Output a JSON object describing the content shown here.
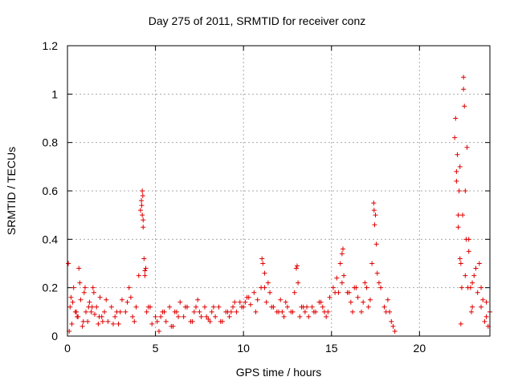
{
  "title": "Day 275 of 2011, SRMTID for receiver conz",
  "chart_data": {
    "type": "scatter",
    "title": "Day 275 of 2011, SRMTID for receiver conz",
    "xlabel": "GPS time / hours",
    "ylabel": "SRMTID / TECUs",
    "xlim": [
      0,
      24
    ],
    "ylim": [
      0,
      1.2
    ],
    "xticks": [
      "0",
      "5",
      "10",
      "15",
      "20"
    ],
    "yticks": [
      "0",
      "0.2",
      "0.4",
      "0.6",
      "0.8",
      "1",
      "1.2"
    ],
    "grid": true,
    "marker": "+",
    "color": "#e00000",
    "series": [
      {
        "x": [
          0.05,
          0.15,
          0.25,
          0.35,
          0.45,
          0.55,
          0.65,
          0.75,
          0.85,
          0.95,
          1.05,
          1.15,
          1.25,
          1.35,
          1.45,
          1.55,
          1.65,
          1.75,
          1.85,
          1.95,
          2.1,
          2.3,
          2.5,
          2.7,
          2.9,
          3.1,
          3.3,
          3.5,
          3.7,
          3.9,
          4.05,
          4.15,
          4.2,
          4.25,
          4.3,
          4.35,
          4.4,
          4.5,
          4.6,
          4.8,
          5.0,
          5.2,
          5.4,
          5.6,
          5.8,
          6.0,
          6.2,
          6.4,
          6.6,
          6.8,
          7.0,
          7.2,
          7.4,
          7.6,
          7.8,
          8.0,
          8.2,
          8.4,
          8.6,
          8.8,
          9.0,
          9.2,
          9.4,
          9.6,
          9.8,
          10.0,
          10.2,
          10.4,
          10.6,
          10.8,
          11.0,
          11.1,
          11.2,
          11.3,
          11.5,
          11.7,
          11.9,
          12.1,
          12.3,
          12.5,
          12.7,
          12.9,
          13.0,
          13.1,
          13.3,
          13.5,
          13.7,
          13.9,
          14.1,
          14.3,
          14.5,
          14.7,
          14.9,
          15.1,
          15.3,
          15.5,
          15.6,
          15.7,
          15.9,
          16.1,
          16.3,
          16.5,
          16.7,
          16.9,
          17.1,
          17.3,
          17.4,
          17.5,
          17.6,
          17.8,
          18.0,
          18.2,
          18.4,
          18.6,
          22.0,
          22.1,
          22.2,
          22.3,
          22.4,
          22.5,
          22.6,
          22.7,
          22.8,
          22.9,
          23.0,
          23.2,
          23.4,
          23.6,
          23.8,
          24.0,
          0.1,
          0.3,
          0.5,
          0.7,
          0.9,
          1.2,
          1.5,
          1.8,
          2.2,
          2.6,
          3.0,
          3.4,
          3.8,
          4.25,
          4.3,
          4.45,
          4.7,
          5.1,
          5.5,
          5.9,
          6.3,
          6.7,
          7.1,
          7.5,
          7.9,
          8.3,
          8.7,
          9.1,
          9.5,
          9.9,
          10.3,
          10.7,
          11.2,
          11.6,
          12.0,
          12.4,
          12.8,
          13.2,
          13.6,
          14.0,
          14.4,
          14.8,
          15.2,
          15.6,
          16.0,
          16.4,
          16.8,
          17.2,
          17.45,
          17.7,
          18.1,
          18.5,
          22.05,
          22.15,
          22.25,
          22.35,
          22.45,
          22.55,
          22.65,
          22.75,
          22.95,
          23.1,
          23.3,
          23.5,
          23.7,
          23.9,
          0.2,
          0.6,
          1.0,
          1.4,
          2.0,
          2.8,
          3.6,
          4.22,
          4.28,
          4.4,
          5.3,
          6.1,
          7.3,
          8.1,
          9.3,
          10.1,
          11.05,
          11.4,
          12.2,
          13.05,
          13.4,
          14.6,
          15.4,
          15.65,
          16.2,
          17.0,
          17.42,
          17.55,
          18.3,
          22.1,
          22.2,
          22.3,
          22.35,
          22.5,
          22.6,
          22.8,
          23.0,
          23.5,
          23.8
        ],
        "y": [
          0.3,
          0.12,
          0.05,
          0.2,
          0.1,
          0.08,
          0.28,
          0.15,
          0.04,
          0.18,
          0.1,
          0.06,
          0.14,
          0.1,
          0.2,
          0.09,
          0.12,
          0.05,
          0.16,
          0.08,
          0.1,
          0.06,
          0.12,
          0.08,
          0.05,
          0.15,
          0.1,
          0.2,
          0.08,
          0.12,
          0.25,
          0.52,
          0.56,
          0.6,
          0.48,
          0.32,
          0.25,
          0.1,
          0.12,
          0.05,
          0.08,
          0.02,
          0.1,
          0.06,
          0.12,
          0.04,
          0.1,
          0.14,
          0.08,
          0.12,
          0.06,
          0.1,
          0.15,
          0.08,
          0.12,
          0.07,
          0.1,
          0.08,
          0.12,
          0.06,
          0.1,
          0.08,
          0.12,
          0.1,
          0.14,
          0.12,
          0.16,
          0.13,
          0.18,
          0.15,
          0.2,
          0.3,
          0.26,
          0.14,
          0.18,
          0.12,
          0.1,
          0.15,
          0.08,
          0.12,
          0.1,
          0.18,
          0.28,
          0.22,
          0.12,
          0.1,
          0.08,
          0.12,
          0.1,
          0.14,
          0.12,
          0.08,
          0.16,
          0.2,
          0.24,
          0.3,
          0.34,
          0.25,
          0.18,
          0.14,
          0.2,
          0.16,
          0.1,
          0.22,
          0.12,
          0.3,
          0.55,
          0.5,
          0.26,
          0.2,
          0.12,
          0.15,
          0.06,
          0.02,
          0.82,
          0.68,
          0.5,
          0.32,
          0.2,
          1.02,
          0.6,
          0.78,
          0.35,
          0.2,
          0.12,
          0.28,
          0.3,
          0.15,
          0.08,
          0.1,
          0.02,
          0.14,
          0.1,
          0.22,
          0.06,
          0.12,
          0.18,
          0.08,
          0.15,
          0.05,
          0.1,
          0.14,
          0.06,
          0.5,
          0.45,
          0.28,
          0.12,
          0.06,
          0.1,
          0.04,
          0.08,
          0.12,
          0.06,
          0.1,
          0.08,
          0.12,
          0.06,
          0.1,
          0.14,
          0.12,
          0.16,
          0.1,
          0.2,
          0.12,
          0.1,
          0.14,
          0.1,
          0.08,
          0.12,
          0.1,
          0.14,
          0.1,
          0.18,
          0.22,
          0.18,
          0.2,
          0.14,
          0.15,
          0.46,
          0.22,
          0.1,
          0.04,
          0.9,
          0.75,
          0.6,
          0.3,
          0.5,
          0.95,
          0.4,
          0.2,
          0.1,
          0.25,
          0.18,
          0.12,
          0.06,
          0.04,
          0.16,
          0.08,
          0.2,
          0.12,
          0.06,
          0.1,
          0.16,
          0.54,
          0.58,
          0.27,
          0.08,
          0.1,
          0.12,
          0.06,
          0.1,
          0.14,
          0.32,
          0.22,
          0.1,
          0.29,
          0.12,
          0.1,
          0.18,
          0.36,
          0.1,
          0.2,
          0.52,
          0.38,
          0.1,
          0.64,
          0.45,
          0.7,
          0.05,
          1.07,
          0.25,
          0.4,
          0.22,
          0.2,
          0.14
        ]
      }
    ]
  }
}
